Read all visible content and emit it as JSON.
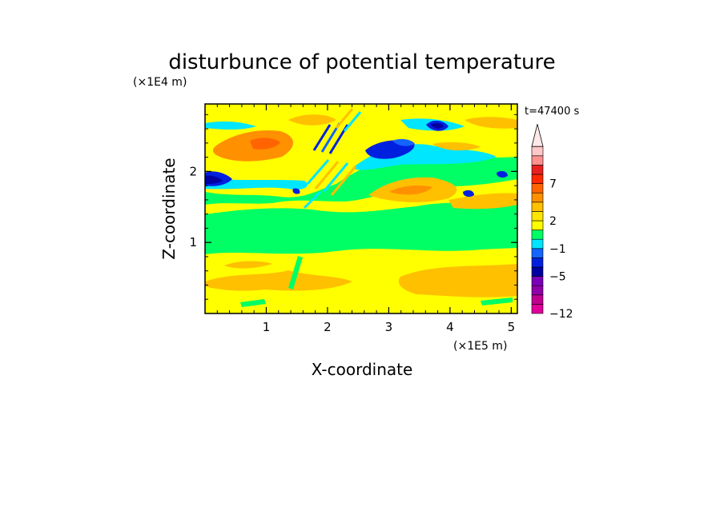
{
  "chart_data": {
    "type": "heatmap",
    "title": "disturbunce of potential temperature",
    "time_label": "t=47400 s",
    "xlabel": "X-coordinate",
    "ylabel": "Z-coordinate",
    "x_unit": "(×1E5 m)",
    "y_unit": "(×1E4 m)",
    "xlim": [
      0,
      5.1
    ],
    "ylim": [
      0,
      2.95
    ],
    "x_ticks": [
      {
        "v": 1,
        "label": "1"
      },
      {
        "v": 2,
        "label": "2"
      },
      {
        "v": 3,
        "label": "3"
      },
      {
        "v": 4,
        "label": "4"
      },
      {
        "v": 5,
        "label": "5"
      }
    ],
    "y_ticks": [
      {
        "v": 1,
        "label": "1"
      },
      {
        "v": 2,
        "label": "2"
      }
    ],
    "colorbar": {
      "colors": [
        "#e0009a",
        "#c00090",
        "#9000a8",
        "#7a00b8",
        "#0000a0",
        "#0020e0",
        "#1464ff",
        "#00e6ff",
        "#00ff64",
        "#ffff00",
        "#ffe600",
        "#ffc000",
        "#ff9000",
        "#ff6400",
        "#ff2800",
        "#e82020",
        "#ff9090",
        "#ffc8c8"
      ],
      "labels": [
        {
          "v": "7",
          "idx": 14
        },
        {
          "v": "2",
          "idx": 10
        },
        {
          "v": "−1",
          "idx": 7
        },
        {
          "v": "−5",
          "idx": 4
        },
        {
          "v": "−12",
          "idx": 0
        }
      ],
      "extend": "max"
    },
    "field": {
      "background_level": "green",
      "bands": [
        {
          "zmin": 0.0,
          "zmax": 0.35,
          "level": "yellow"
        },
        {
          "zmin": 0.35,
          "zmax": 0.85,
          "level": "light-orange-patches"
        },
        {
          "zmin": 0.85,
          "zmax": 1.5,
          "level": "green"
        },
        {
          "zmin": 1.5,
          "zmax": 2.0,
          "level": "yellow-orange"
        },
        {
          "zmin": 2.0,
          "zmax": 2.95,
          "level": "mixed"
        }
      ],
      "features": [
        {
          "x": 0.1,
          "z": 1.92,
          "level": "dark-blue",
          "note": "negative anomaly at left edge"
        },
        {
          "x": 0.9,
          "z": 2.45,
          "level": "orange",
          "note": "warm anomaly"
        },
        {
          "x": 3.2,
          "z": 2.35,
          "level": "blue",
          "note": "cold anomaly"
        },
        {
          "x": 3.7,
          "z": 2.7,
          "level": "dark-blue",
          "note": "cold core"
        },
        {
          "x": 3.2,
          "z": 1.75,
          "level": "orange",
          "note": "warm anomaly"
        }
      ]
    }
  }
}
